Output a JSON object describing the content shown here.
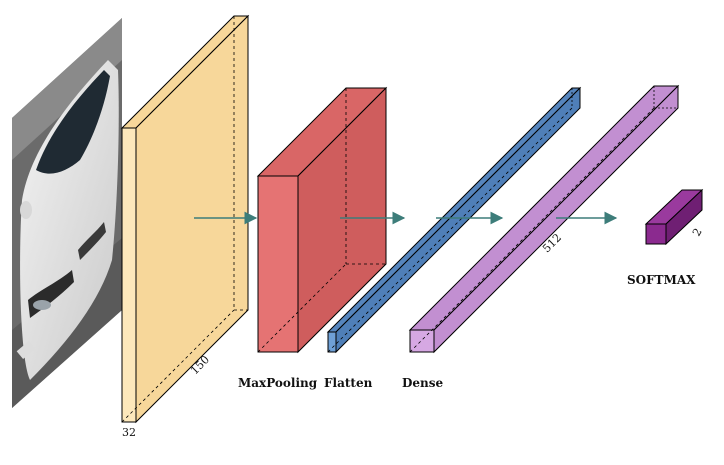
{
  "layers": {
    "conv": {
      "dim_depth": "32",
      "dim_size": "150",
      "color_front": "#fde8bb",
      "color_side": "#f7d79a"
    },
    "maxpool": {
      "label": "MaxPooling",
      "color_front": "#e57373",
      "color_side": "#cf5d5d"
    },
    "flatten": {
      "label": "Flatten",
      "color_front": "#6fa0d6",
      "color_side": "#5685bd"
    },
    "dense": {
      "label": "Dense",
      "dim_size": "512",
      "color_front": "#d6a8e3",
      "color_side": "#c28fd1"
    },
    "softmax": {
      "label": "SOFTMAX",
      "dim_size": "2",
      "color_front": "#8b2a8f",
      "color_side": "#6f1f73"
    }
  },
  "arrow_color": "#3d7d7a",
  "input_image": {
    "description_icon": "car-photo"
  }
}
